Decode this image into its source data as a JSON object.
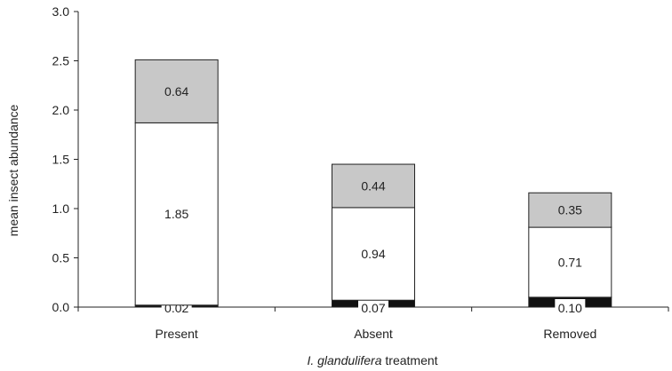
{
  "chart_data": {
    "type": "bar",
    "stacked": true,
    "categories": [
      "Present",
      "Absent",
      "Removed"
    ],
    "series": [
      {
        "values": [
          0.02,
          0.07,
          0.1
        ],
        "color": "#111111",
        "labels": [
          "0.02",
          "0.07",
          "0.10"
        ]
      },
      {
        "values": [
          1.85,
          0.94,
          0.71
        ],
        "color": "#ffffff",
        "labels": [
          "1.85",
          "0.94",
          "0.71"
        ]
      },
      {
        "values": [
          0.64,
          0.44,
          0.35
        ],
        "color": "#c8c8c8",
        "labels": [
          "0.64",
          "0.44",
          "0.35"
        ]
      }
    ],
    "ylabel": "mean insect abundance",
    "xlabel_italic": "I. glandulifera",
    "xlabel_rest": " treatment",
    "ylim": [
      0,
      3.0
    ],
    "yticks": [
      "0.0",
      "0.5",
      "1.0",
      "1.5",
      "2.0",
      "2.5",
      "3.0"
    ],
    "grid": false
  }
}
